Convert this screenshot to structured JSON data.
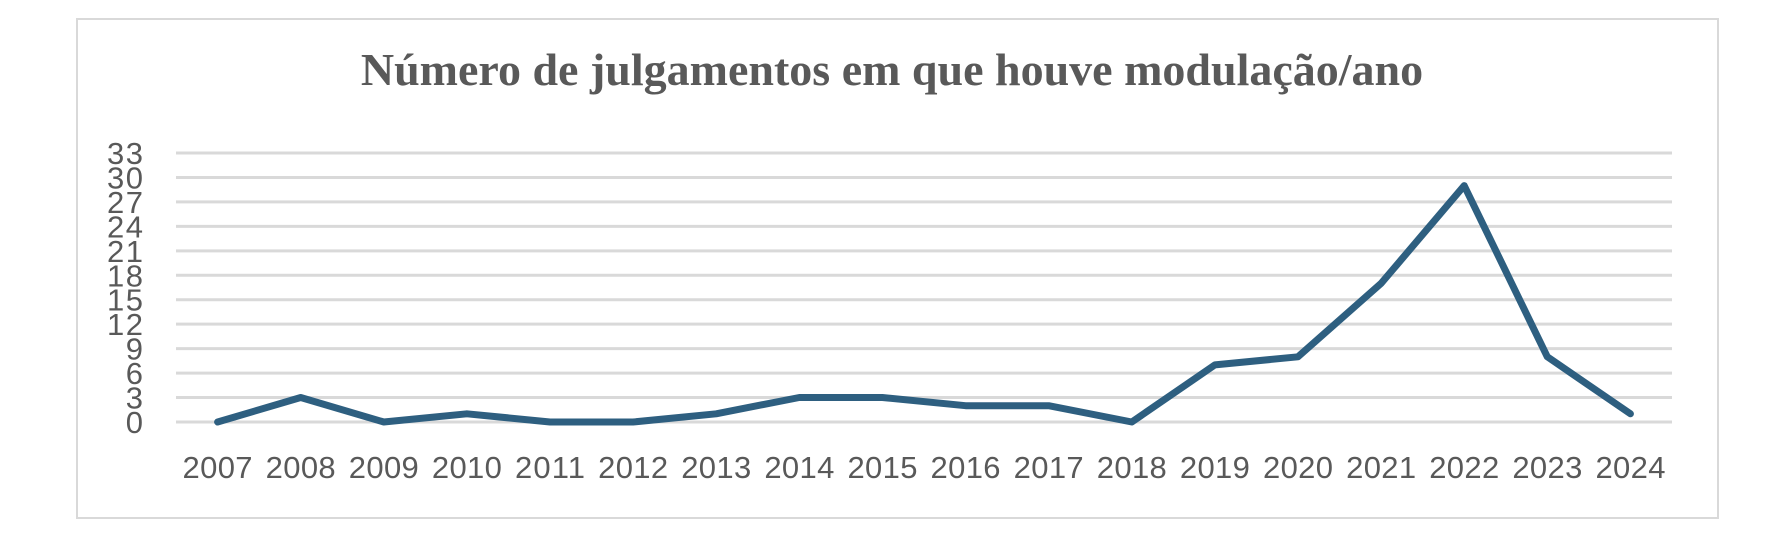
{
  "chart_data": {
    "type": "line",
    "title": "Número de julgamentos em que houve modulação/ano",
    "xlabel": "",
    "ylabel": "",
    "categories": [
      "2007",
      "2008",
      "2009",
      "2010",
      "2011",
      "2012",
      "2013",
      "2014",
      "2015",
      "2016",
      "2017",
      "2018",
      "2019",
      "2020",
      "2021",
      "2022",
      "2023",
      "2024"
    ],
    "series": [
      {
        "name": "Número de julgamentos",
        "color": "#2e5f80",
        "values": [
          0,
          3,
          0,
          1,
          0,
          0,
          1,
          3,
          3,
          2,
          2,
          0,
          7,
          8,
          17,
          29,
          8,
          1
        ]
      }
    ],
    "yticks": [
      0,
      3,
      6,
      9,
      12,
      15,
      18,
      21,
      24,
      27,
      30,
      33
    ],
    "ylim": [
      0,
      33
    ],
    "grid": "horizontal",
    "legend": "none"
  },
  "style": {
    "gridline_color": "#d9d9d9",
    "text_color": "#595959",
    "frame_color": "#d9d9d9"
  }
}
